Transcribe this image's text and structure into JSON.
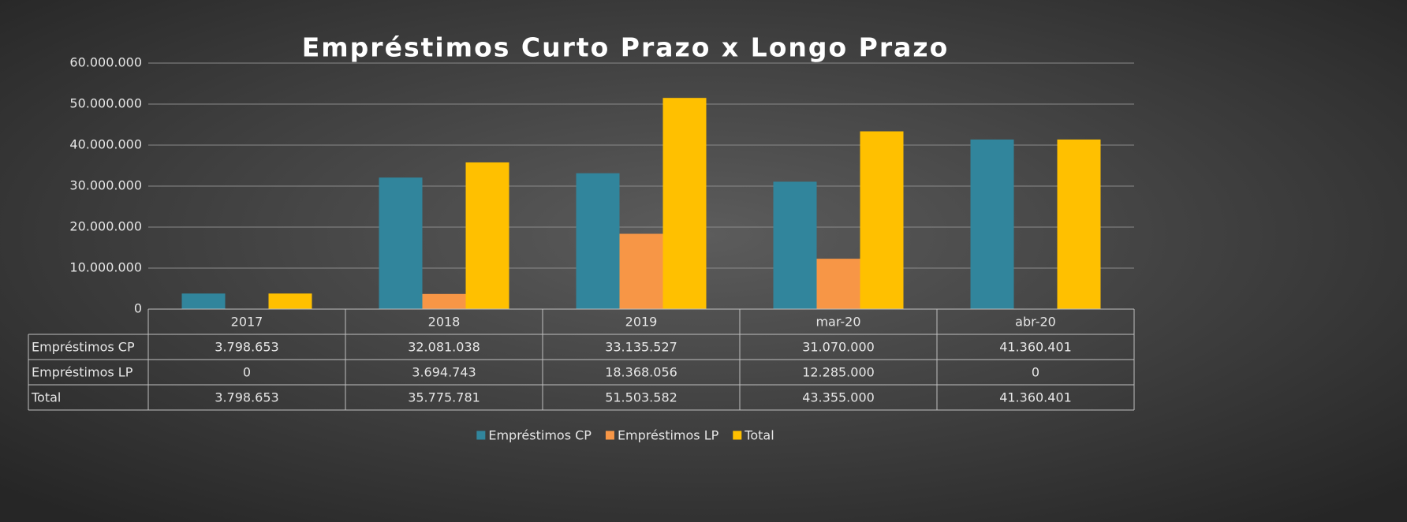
{
  "chart_data": {
    "type": "bar",
    "title": "Empréstimos Curto Prazo x Longo Prazo",
    "categories": [
      "2017",
      "2018",
      "2019",
      "mar-20",
      "abr-20"
    ],
    "series": [
      {
        "name": "Empréstimos CP",
        "color": "#31859c",
        "values": [
          3798653,
          32081038,
          33135527,
          31070000,
          41360401
        ],
        "value_labels": [
          "3.798.653",
          "32.081.038",
          "33.135.527",
          "31.070.000",
          "41.360.401"
        ]
      },
      {
        "name": "Empréstimos LP",
        "color": "#f79646",
        "values": [
          0,
          3694743,
          18368056,
          12285000,
          0
        ],
        "value_labels": [
          "0",
          "3.694.743",
          "18.368.056",
          "12.285.000",
          "0"
        ]
      },
      {
        "name": "Total",
        "color": "#ffc000",
        "values": [
          3798653,
          35775781,
          51503582,
          43355000,
          41360401
        ],
        "value_labels": [
          "3.798.653",
          "35.775.781",
          "51.503.582",
          "43.355.000",
          "41.360.401"
        ]
      }
    ],
    "ylim": [
      0,
      60000000
    ],
    "yticks": [
      0,
      {
        "value": 10000000,
        "label": "10.000.000"
      },
      {
        "value": 20000000,
        "label": "20.000.000"
      },
      {
        "value": 30000000,
        "label": "30.000.000"
      },
      {
        "value": 40000000,
        "label": "40.000.000"
      },
      {
        "value": 50000000,
        "label": "50.000.000"
      },
      {
        "value": 60000000,
        "label": "60.000.000"
      }
    ],
    "grid": true,
    "legend": "bottom"
  }
}
